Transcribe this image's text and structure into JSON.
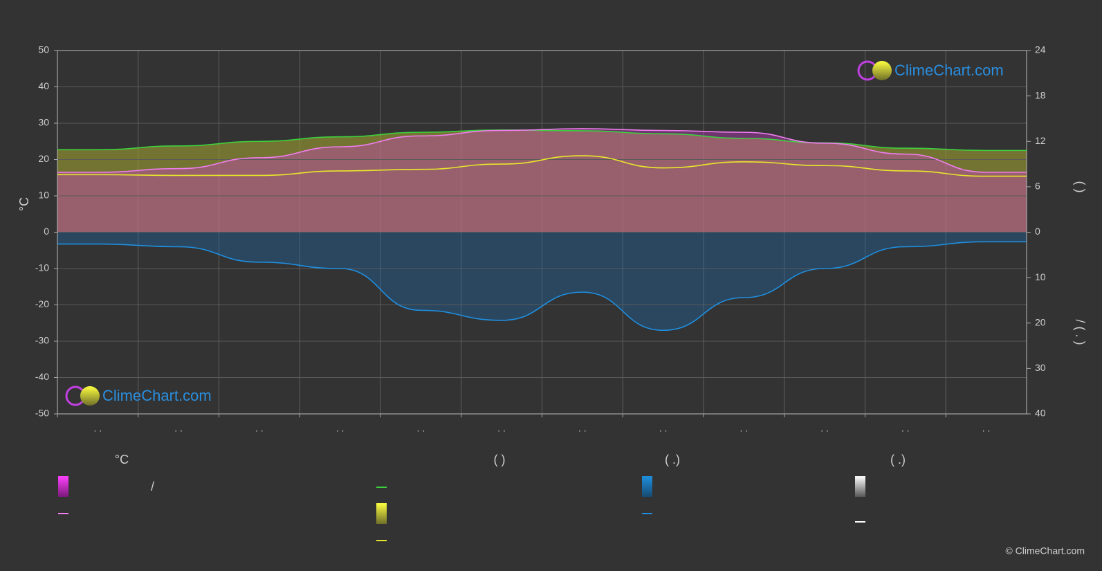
{
  "chart_data": {
    "type": "line",
    "categories": [
      ". .",
      ". .",
      ". .",
      ". .",
      ". .",
      ". .",
      ". .",
      ". .",
      ". .",
      ". .",
      ". .",
      ". ."
    ],
    "ylabel": "°C",
    "y2label": "(   )",
    "y3label": "/   ( . )",
    "ylim": [
      -50,
      50
    ],
    "yticks": [
      -50,
      -40,
      -30,
      -20,
      -10,
      0,
      10,
      20,
      30,
      40,
      50
    ],
    "y2lim": [
      0,
      24
    ],
    "y2ticks": [
      0,
      6,
      12,
      18,
      24
    ],
    "y3lim": [
      0,
      40
    ],
    "y3ticks": [
      10,
      20,
      30,
      40
    ],
    "grid": true,
    "series": [
      {
        "color": "#3dd13d",
        "axis": "y2",
        "values": [
          10.9,
          11.4,
          12.0,
          12.6,
          13.2,
          13.5,
          13.4,
          13.0,
          12.4,
          11.8,
          11.1,
          10.8
        ]
      },
      {
        "color": "#e8e82a",
        "axis": "y2",
        "values": [
          7.6,
          7.5,
          7.5,
          8.1,
          8.3,
          9.0,
          10.1,
          8.5,
          9.3,
          8.8,
          8.1,
          7.4
        ]
      },
      {
        "color": "#f07ef0",
        "axis": "y",
        "values": [
          16.5,
          17.5,
          20.5,
          23.5,
          26.5,
          28,
          28.5,
          28,
          27.5,
          24.5,
          21.5,
          16.5
        ]
      },
      {
        "color": "#1e8fe0",
        "axis": "y3",
        "values": [
          2.6,
          3.2,
          6.6,
          8.0,
          17.2,
          19.4,
          13.2,
          21.6,
          14.4,
          8.0,
          3.2,
          2.1
        ]
      }
    ],
    "legend_headings": [
      "°C",
      "(          )",
      "(   .)",
      "(   .)"
    ],
    "legend_text": "/",
    "watermark": "ClimeChart.com",
    "copyright": "© ClimeChart.com"
  }
}
